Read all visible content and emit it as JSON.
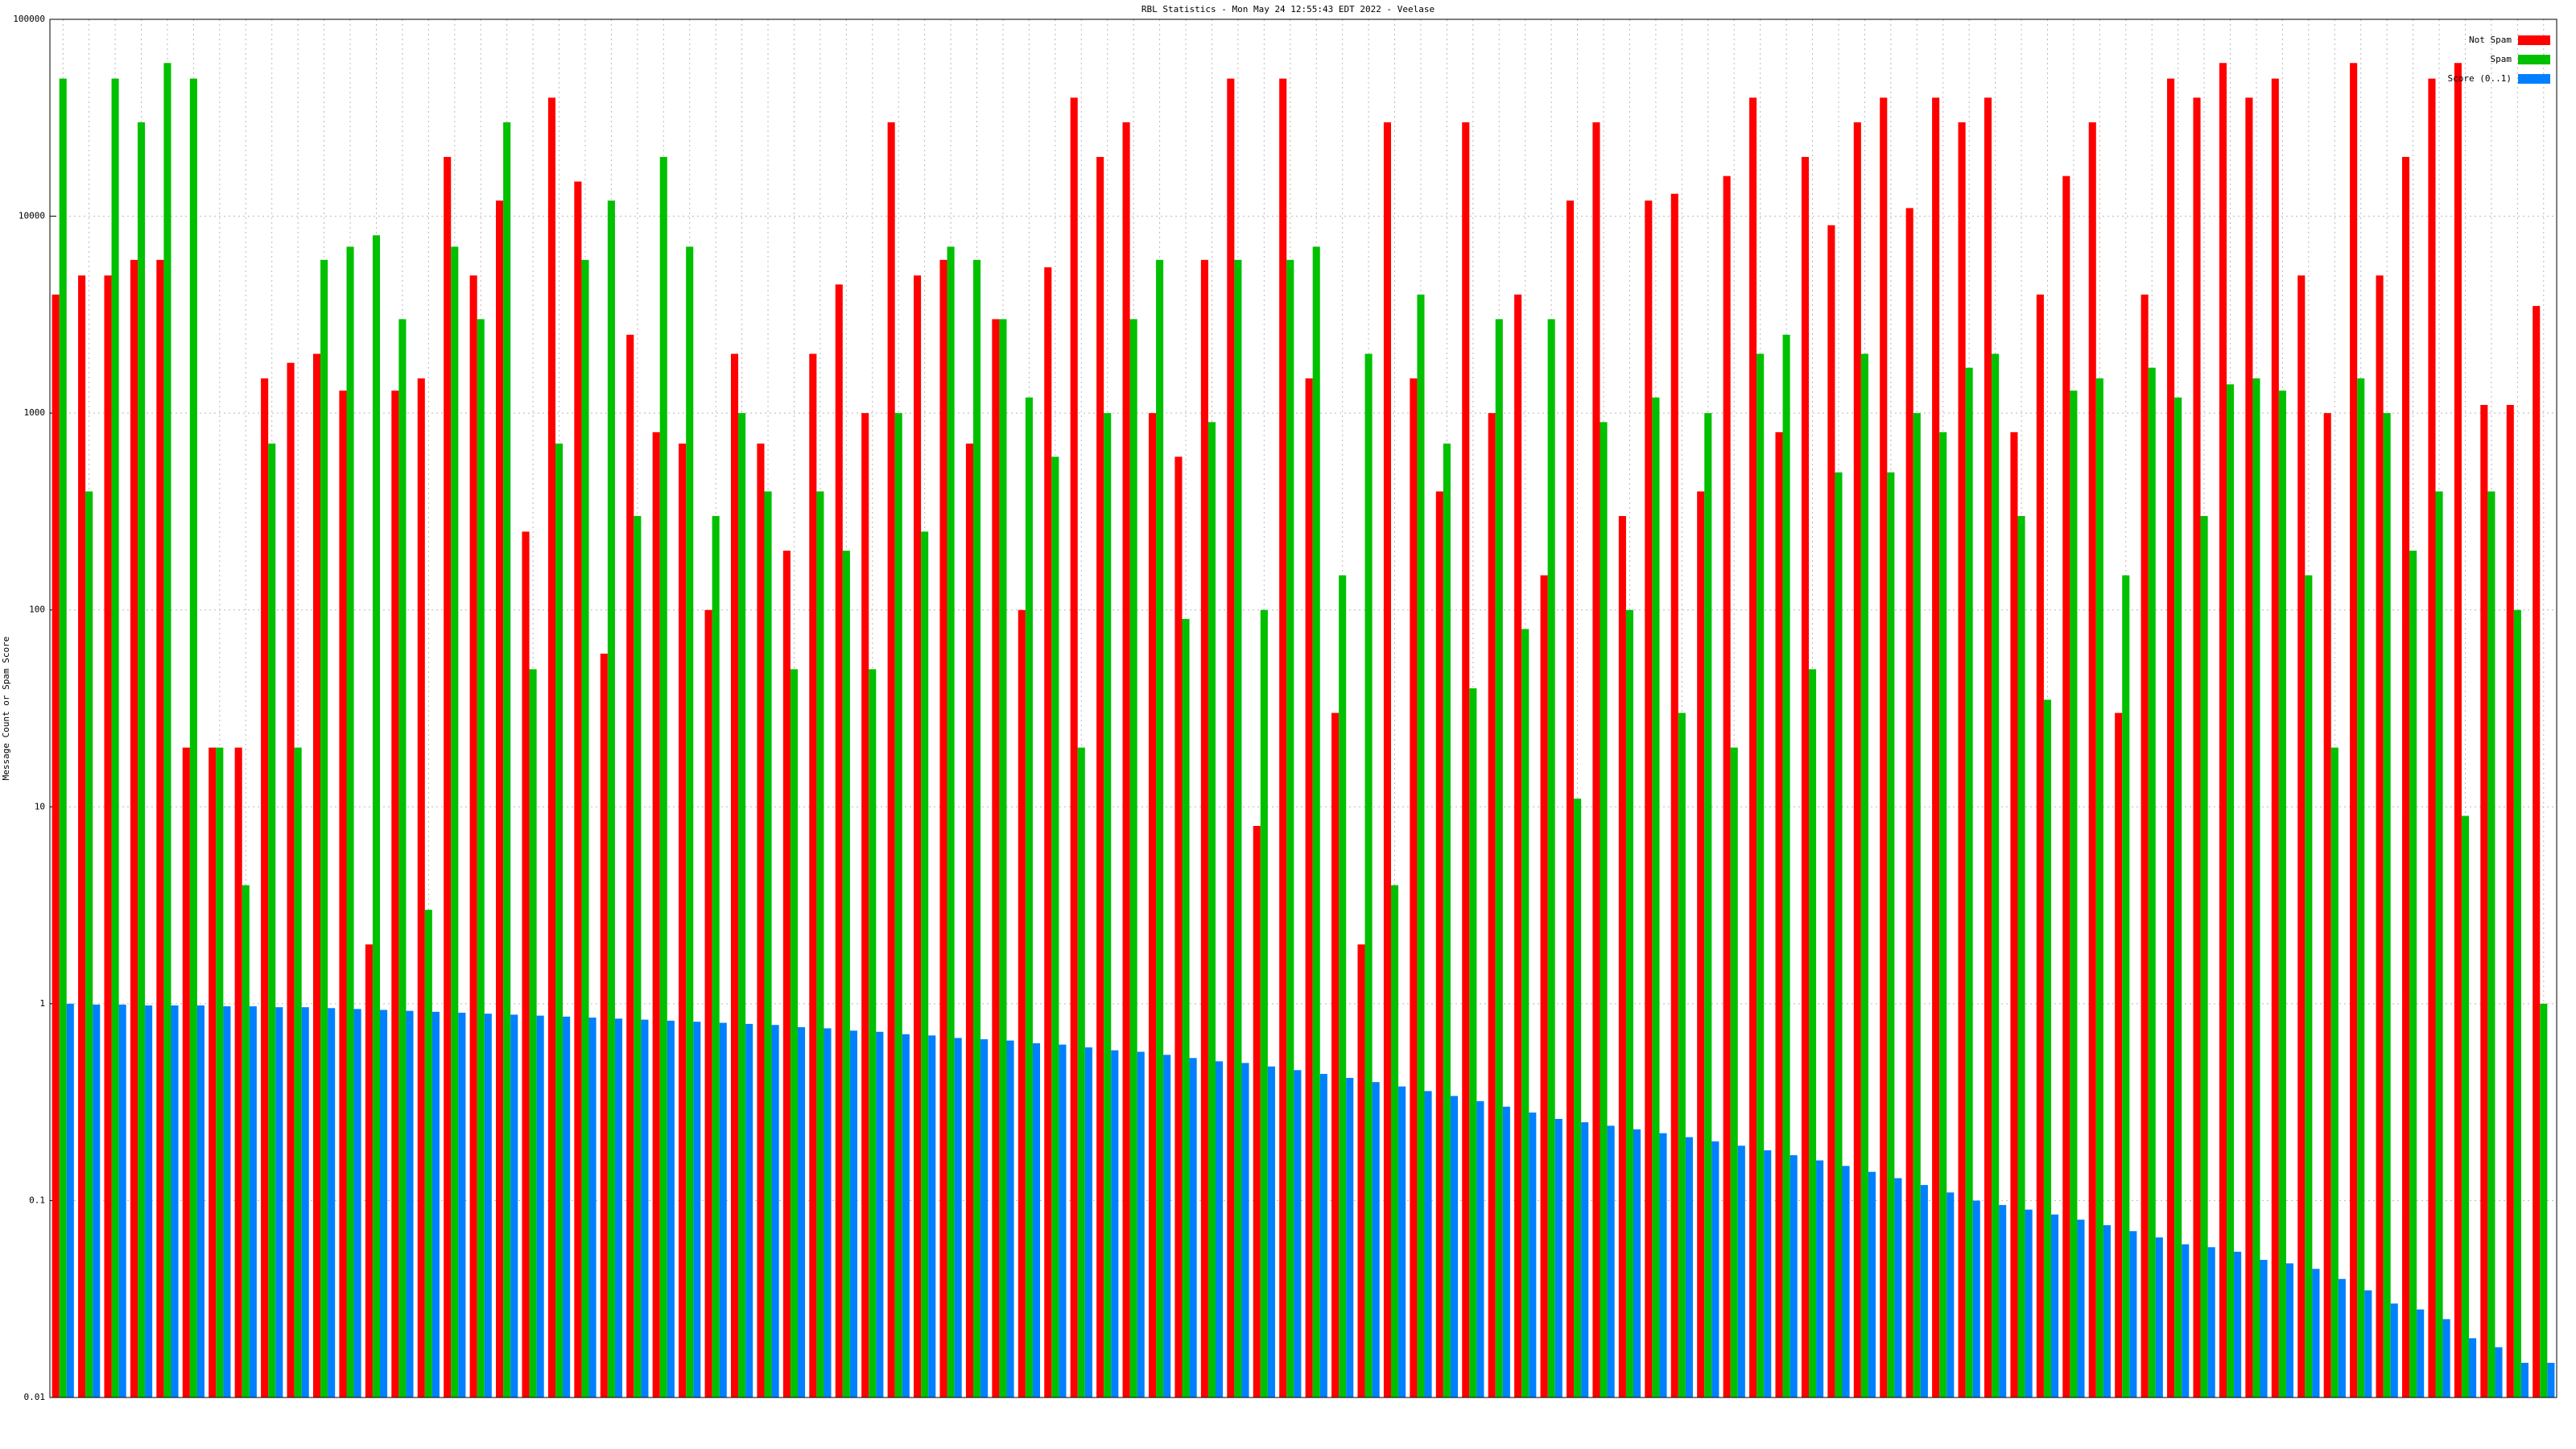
{
  "chart_data": {
    "type": "bar",
    "title": "RBL Statistics - Mon May 24 12:55:43 EDT 2022 - Veelase",
    "y_label": "Message Count or Spam Score",
    "log_scale": true,
    "grid": true,
    "legend_position": "top-right",
    "ylim": [
      0.01,
      100000
    ],
    "yticks": [
      0.01,
      0.1,
      1,
      10,
      100,
      1000,
      10000,
      100000
    ],
    "categories": [
      null,
      null,
      null,
      null,
      null,
      null,
      null,
      null,
      null,
      null,
      null,
      null,
      null,
      null,
      null,
      null,
      null,
      null,
      null,
      null,
      null,
      null,
      null,
      null,
      null,
      null,
      null,
      null,
      null,
      null,
      null,
      null,
      null,
      null,
      null,
      null,
      null,
      null,
      null,
      null,
      null,
      null,
      null,
      null,
      null,
      null,
      null,
      null,
      null,
      null,
      null,
      null,
      null,
      null,
      null,
      null,
      null,
      null,
      null,
      null,
      null,
      null,
      null,
      null,
      null,
      null,
      null,
      null,
      null,
      null,
      null,
      null,
      null,
      null,
      null,
      null,
      null,
      null,
      null,
      null,
      null,
      null,
      null,
      null,
      null,
      null,
      null,
      null,
      null,
      null,
      null,
      null,
      null,
      null,
      null,
      null
    ],
    "series": [
      {
        "name": "Not Spam",
        "color": "#ff0000",
        "values": [
          4000,
          5000,
          5000,
          6000,
          6000,
          20,
          20,
          20,
          1500,
          1800,
          2000,
          1300,
          2,
          1300,
          1500,
          20000,
          5000,
          12000,
          250,
          40000,
          15000,
          60,
          2500,
          800,
          700,
          100,
          2000,
          700,
          200,
          2000,
          4500,
          1000,
          30000,
          5000,
          6000,
          700,
          3000,
          100,
          5500,
          40000,
          20000,
          30000,
          1000,
          600,
          6000,
          50000,
          8,
          50000,
          1500,
          30,
          2,
          30000,
          1500,
          400,
          30000,
          1000,
          4000,
          150,
          12000,
          30000,
          300,
          12000,
          13000,
          400,
          16000,
          40000,
          800,
          20000,
          9000,
          30000,
          40000,
          11000,
          40000,
          30000,
          40000,
          800,
          4000,
          16000,
          30000,
          30,
          4000,
          50000,
          40000,
          60000,
          40000,
          50000,
          5000,
          1000,
          60000,
          5000,
          20000,
          50000,
          60000,
          1100,
          1100,
          3500
        ]
      },
      {
        "name": "Spam",
        "color": "#00c000",
        "values": [
          50000,
          400,
          50000,
          30000,
          60000,
          50000,
          20,
          4,
          700,
          20,
          6000,
          7000,
          8000,
          3000,
          3,
          7000,
          3000,
          30000,
          50,
          700,
          6000,
          12000,
          300,
          20000,
          7000,
          300,
          1000,
          400,
          50,
          400,
          200,
          50,
          1000,
          250,
          7000,
          6000,
          3000,
          1200,
          600,
          20,
          1000,
          3000,
          6000,
          90,
          900,
          6000,
          100,
          6000,
          7000,
          150,
          2000,
          4,
          4000,
          700,
          40,
          3000,
          80,
          3000,
          11,
          900,
          100,
          1200,
          30,
          1000,
          20,
          2000,
          2500,
          50,
          500,
          2000,
          500,
          1000,
          800,
          1700,
          2000,
          300,
          35,
          1300,
          1500,
          150,
          1700,
          1200,
          300,
          1400,
          1500,
          1300,
          150,
          20,
          1500,
          1000,
          200,
          400,
          9,
          400,
          100,
          1
        ]
      },
      {
        "name": "Score (0..1)",
        "color": "#0080ff",
        "values": [
          1.0,
          0.99,
          0.99,
          0.98,
          0.98,
          0.98,
          0.97,
          0.97,
          0.96,
          0.96,
          0.95,
          0.94,
          0.93,
          0.92,
          0.91,
          0.9,
          0.89,
          0.88,
          0.87,
          0.86,
          0.85,
          0.84,
          0.83,
          0.82,
          0.81,
          0.8,
          0.79,
          0.78,
          0.76,
          0.75,
          0.73,
          0.72,
          0.7,
          0.69,
          0.67,
          0.66,
          0.65,
          0.63,
          0.62,
          0.6,
          0.58,
          0.57,
          0.55,
          0.53,
          0.51,
          0.5,
          0.48,
          0.46,
          0.44,
          0.42,
          0.4,
          0.38,
          0.36,
          0.34,
          0.32,
          0.3,
          0.28,
          0.26,
          0.25,
          0.24,
          0.23,
          0.22,
          0.21,
          0.2,
          0.19,
          0.18,
          0.17,
          0.16,
          0.15,
          0.14,
          0.13,
          0.12,
          0.11,
          0.1,
          0.095,
          0.09,
          0.085,
          0.08,
          0.075,
          0.07,
          0.065,
          0.06,
          0.058,
          0.055,
          0.05,
          0.048,
          0.045,
          0.04,
          0.035,
          0.03,
          0.028,
          0.025,
          0.02,
          0.018,
          0.015,
          0.015
        ]
      }
    ]
  }
}
